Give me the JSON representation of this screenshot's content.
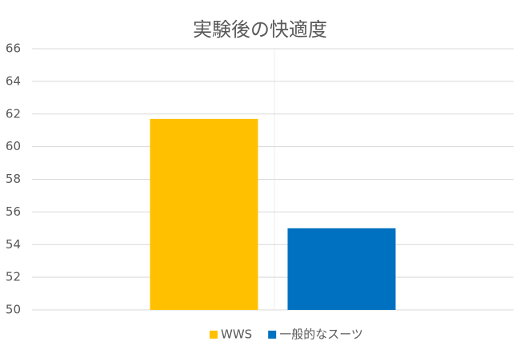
{
  "chart_data": {
    "type": "bar",
    "title": "実験後の快適度",
    "categories": [
      null
    ],
    "series": [
      {
        "name": "WWS",
        "color": "#FFC000",
        "values": [
          61.7
        ]
      },
      {
        "name": "一般的なスーツ",
        "color": "#0070C0",
        "values": [
          55.0
        ]
      }
    ],
    "ylim": [
      50,
      66
    ],
    "yticks": [
      50,
      52,
      54,
      56,
      58,
      60,
      62,
      64,
      66
    ],
    "grid": true,
    "legend": "bottom"
  }
}
